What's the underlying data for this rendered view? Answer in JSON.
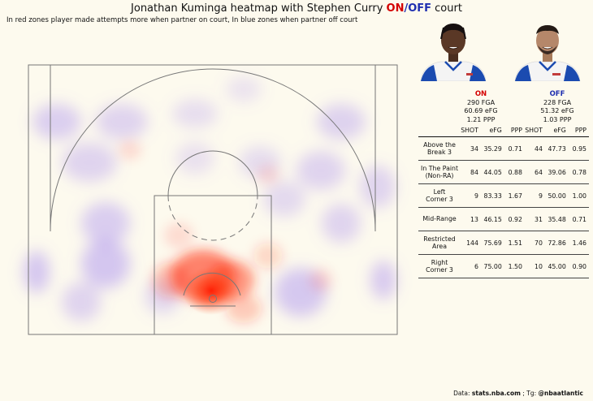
{
  "title": {
    "prefix": "Jonathan Kuminga heatmap with Stephen Curry ",
    "on": "ON",
    "sep": "/",
    "off": "OFF",
    "suffix": " court"
  },
  "subtitle": "In red zones player made attempts more when partner on court, In blue zones when partner off court",
  "players": {
    "left": "Jonathan Kuminga",
    "right": "Stephen Curry"
  },
  "colors": {
    "on": "#d40000",
    "off": "#1f2fb0",
    "background": "#fdfaee",
    "heat_on": "#ff2000",
    "heat_off": "#9a7cf0"
  },
  "summary": {
    "on": {
      "label": "ON",
      "fga": "290 FGA",
      "efg": "60.69 eFG",
      "ppp": "1.21 PPP"
    },
    "off": {
      "label": "OFF",
      "fga": "228 FGA",
      "efg": "51.32 eFG",
      "ppp": "1.03 PPP"
    }
  },
  "table": {
    "headers": [
      "SHOT",
      "eFG",
      "PPP",
      "SHOT",
      "eFG",
      "PPP"
    ],
    "rows": [
      {
        "zone": [
          "Above the",
          "Break 3"
        ],
        "values": [
          "34",
          "35.29",
          "0.71",
          "44",
          "47.73",
          "0.95"
        ]
      },
      {
        "zone": [
          "In The Paint",
          "(Non-RA)"
        ],
        "values": [
          "84",
          "44.05",
          "0.88",
          "64",
          "39.06",
          "0.78"
        ]
      },
      {
        "zone": [
          "Left",
          "Corner 3"
        ],
        "values": [
          "9",
          "83.33",
          "1.67",
          "9",
          "50.00",
          "1.00"
        ]
      },
      {
        "zone": [
          "Mid-Range",
          ""
        ],
        "values": [
          "13",
          "46.15",
          "0.92",
          "31",
          "35.48",
          "0.71"
        ]
      },
      {
        "zone": [
          "Restricted",
          "Area"
        ],
        "values": [
          "144",
          "75.69",
          "1.51",
          "70",
          "72.86",
          "1.46"
        ]
      },
      {
        "zone": [
          "Right",
          "Corner 3"
        ],
        "values": [
          "6",
          "75.00",
          "1.50",
          "10",
          "45.00",
          "0.90"
        ]
      }
    ]
  },
  "footer": {
    "data_label": "Data: ",
    "data_source": "stats.nba.com",
    "tg_label": " ; Tg: ",
    "tg_handle": "@nbaatlantic"
  },
  "chart_data": {
    "type": "heatmap",
    "title": "Jonathan Kuminga heatmap with Stephen Curry ON/OFF court",
    "subtitle": "In red zones player made attempts more when partner on court, In blue zones when partner off court",
    "xlabel": "",
    "ylabel": "",
    "zones_on_more": [
      "Restricted Area",
      "In The Paint (Non-RA)"
    ],
    "zones_off_more": [
      "Above the Break 3",
      "Mid-Range",
      "Left Corner 3",
      "Right Corner 3"
    ]
  }
}
